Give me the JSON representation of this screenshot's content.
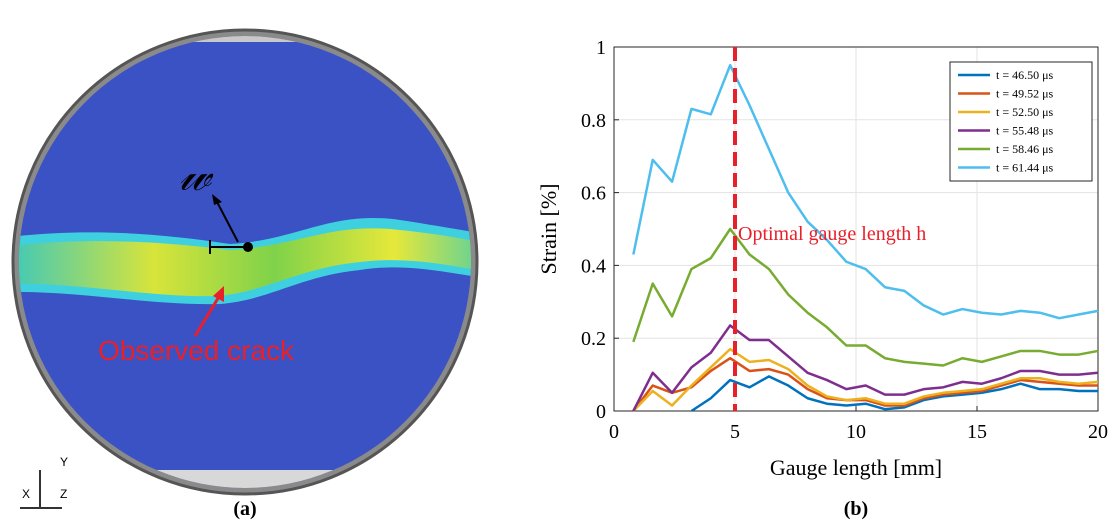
{
  "panel_a": {
    "caption": "(a)",
    "annotation": "Observed crack",
    "symbol": "𝓌",
    "axis_labels": [
      "X",
      "Y",
      "Z"
    ]
  },
  "panel_b": {
    "caption": "(b)"
  },
  "chart_data": {
    "type": "line",
    "xlabel": "Gauge length [mm]",
    "ylabel": "Strain [%]",
    "xlim": [
      0,
      20
    ],
    "ylim": [
      0,
      1
    ],
    "xticks": [
      0,
      5,
      10,
      15,
      20
    ],
    "yticks": [
      0,
      0.2,
      0.4,
      0.6,
      0.8,
      1
    ],
    "grid": true,
    "legend": "upper right",
    "vline": {
      "x": 5,
      "color": "#e8202a",
      "label": "Optimal gauge length h"
    },
    "x": [
      0.8,
      1.6,
      2.4,
      3.2,
      4.0,
      4.8,
      5.6,
      6.4,
      7.2,
      8.0,
      8.8,
      9.6,
      10.4,
      11.2,
      12.0,
      12.8,
      13.6,
      14.4,
      15.2,
      16.0,
      16.8,
      17.6,
      18.4,
      19.2,
      20.0
    ],
    "series": [
      {
        "name": "t = 46.50 μs",
        "color": "#0072bd",
        "values": [
          null,
          null,
          null,
          0,
          0.035,
          0.085,
          0.065,
          0.095,
          0.07,
          0.035,
          0.02,
          0.015,
          0.02,
          0.005,
          0.01,
          0.03,
          0.04,
          0.045,
          0.05,
          0.06,
          0.075,
          0.06,
          0.06,
          0.055,
          0.055
        ]
      },
      {
        "name": "t = 49.52 μs",
        "color": "#d95319",
        "values": [
          0,
          0.07,
          0.05,
          0.065,
          0.11,
          0.145,
          0.11,
          0.115,
          0.1,
          0.06,
          0.035,
          0.03,
          0.03,
          0.015,
          0.015,
          0.035,
          0.045,
          0.05,
          0.055,
          0.07,
          0.085,
          0.08,
          0.075,
          0.07,
          0.07
        ]
      },
      {
        "name": "t = 52.50 μs",
        "color": "#edb120",
        "values": [
          0,
          0.055,
          0.015,
          0.07,
          0.12,
          0.17,
          0.135,
          0.14,
          0.115,
          0.07,
          0.04,
          0.03,
          0.035,
          0.02,
          0.02,
          0.04,
          0.05,
          0.055,
          0.06,
          0.075,
          0.09,
          0.09,
          0.08,
          0.075,
          0.08
        ]
      },
      {
        "name": "t = 55.48 μs",
        "color": "#7e2f8e",
        "values": [
          0,
          0.105,
          0.05,
          0.12,
          0.16,
          0.235,
          0.195,
          0.195,
          0.15,
          0.105,
          0.085,
          0.06,
          0.07,
          0.045,
          0.045,
          0.06,
          0.065,
          0.08,
          0.075,
          0.09,
          0.11,
          0.11,
          0.1,
          0.1,
          0.105
        ]
      },
      {
        "name": "t = 58.46 μs",
        "color": "#77ac30",
        "values": [
          0.19,
          0.35,
          0.26,
          0.39,
          0.42,
          0.5,
          0.43,
          0.39,
          0.32,
          0.27,
          0.23,
          0.18,
          0.18,
          0.145,
          0.135,
          0.13,
          0.125,
          0.145,
          0.135,
          0.15,
          0.165,
          0.165,
          0.155,
          0.155,
          0.165
        ]
      },
      {
        "name": "t = 61.44 μs",
        "color": "#4dbeee",
        "values": [
          0.43,
          0.69,
          0.63,
          0.83,
          0.815,
          0.95,
          0.84,
          0.72,
          0.6,
          0.52,
          0.47,
          0.41,
          0.39,
          0.34,
          0.33,
          0.29,
          0.265,
          0.28,
          0.27,
          0.265,
          0.275,
          0.27,
          0.255,
          0.265,
          0.275
        ]
      }
    ]
  }
}
